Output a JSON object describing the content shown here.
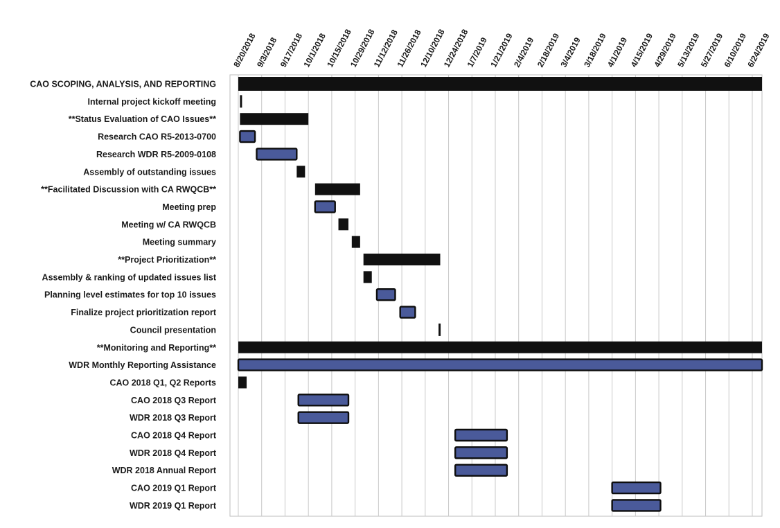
{
  "chart_data": {
    "type": "gantt",
    "title": "",
    "grid": true,
    "x_axis": {
      "position": "top",
      "range": [
        "8/20/2018",
        "6/24/2019"
      ],
      "ticks": [
        "8/20/2018",
        "9/3/2018",
        "9/17/2018",
        "10/1/2018",
        "10/15/2018",
        "10/29/2018",
        "11/12/2018",
        "11/26/2018",
        "12/10/2018",
        "12/24/2018",
        "1/7/2019",
        "1/21/2019",
        "2/4/2019",
        "2/18/2019",
        "3/4/2019",
        "3/18/2019",
        "4/1/2019",
        "4/15/2019",
        "4/29/2019",
        "5/13/2019",
        "5/27/2019",
        "6/10/2019",
        "6/24/2019"
      ]
    },
    "colors": {
      "summary": "#111111",
      "task": "#4a5a9a",
      "task_border": "#0d0d0d",
      "grid": "#c8c8c8"
    },
    "tasks": [
      {
        "label": "CAO SCOPING, ANALYSIS, AND REPORTING",
        "start": "8/20/2018",
        "end": "6/30/2019",
        "kind": "summary"
      },
      {
        "label": "Internal project kickoff meeting",
        "start": "8/21/2018",
        "end": "8/21/2018",
        "kind": "milestone"
      },
      {
        "label": "**Status Evaluation of CAO Issues**",
        "start": "8/21/2018",
        "end": "10/1/2018",
        "kind": "summary"
      },
      {
        "label": "Research CAO R5-2013-0700",
        "start": "8/21/2018",
        "end": "8/30/2018",
        "kind": "task"
      },
      {
        "label": "Research WDR R5-2009-0108",
        "start": "8/31/2018",
        "end": "9/24/2018",
        "kind": "task"
      },
      {
        "label": "Assembly of outstanding issues",
        "start": "9/24/2018",
        "end": "9/29/2018",
        "kind": "summary"
      },
      {
        "label": "**Facilitated Discussion with CA RWQCB**",
        "start": "10/5/2018",
        "end": "11/1/2018",
        "kind": "summary"
      },
      {
        "label": "Meeting prep",
        "start": "10/5/2018",
        "end": "10/17/2018",
        "kind": "task"
      },
      {
        "label": "Meeting w/ CA RWQCB",
        "start": "10/19/2018",
        "end": "10/25/2018",
        "kind": "summary"
      },
      {
        "label": "Meeting summary",
        "start": "10/27/2018",
        "end": "11/1/2018",
        "kind": "summary"
      },
      {
        "label": "**Project Prioritization**",
        "start": "11/3/2018",
        "end": "12/19/2018",
        "kind": "summary"
      },
      {
        "label": "Assembly & ranking of updated issues list",
        "start": "11/3/2018",
        "end": "11/8/2018",
        "kind": "summary"
      },
      {
        "label": "Planning level estimates for top 10 issues",
        "start": "11/11/2018",
        "end": "11/22/2018",
        "kind": "task"
      },
      {
        "label": "Finalize project prioritization report",
        "start": "11/25/2018",
        "end": "12/4/2018",
        "kind": "task"
      },
      {
        "label": "Council presentation",
        "start": "12/18/2018",
        "end": "12/18/2018",
        "kind": "milestone"
      },
      {
        "label": "**Monitoring and Reporting**",
        "start": "8/20/2018",
        "end": "6/30/2019",
        "kind": "summary"
      },
      {
        "label": "WDR Monthly Reporting Assistance",
        "start": "8/20/2018",
        "end": "6/30/2019",
        "kind": "task"
      },
      {
        "label": "CAO 2018 Q1, Q2 Reports",
        "start": "8/20/2018",
        "end": "8/25/2018",
        "kind": "summary"
      },
      {
        "label": "CAO 2018 Q3 Report",
        "start": "9/25/2018",
        "end": "10/25/2018",
        "kind": "task"
      },
      {
        "label": "WDR 2018 Q3 Report",
        "start": "9/25/2018",
        "end": "10/25/2018",
        "kind": "task"
      },
      {
        "label": "CAO 2018 Q4 Report",
        "start": "12/28/2018",
        "end": "1/28/2019",
        "kind": "task"
      },
      {
        "label": "WDR 2018 Q4 Report",
        "start": "12/28/2018",
        "end": "1/28/2019",
        "kind": "task"
      },
      {
        "label": "WDR 2018 Annual Report",
        "start": "12/28/2018",
        "end": "1/28/2019",
        "kind": "task"
      },
      {
        "label": "CAO 2019 Q1 Report",
        "start": "4/1/2019",
        "end": "4/30/2019",
        "kind": "task"
      },
      {
        "label": "WDR 2019 Q1 Report",
        "start": "4/1/2019",
        "end": "4/30/2019",
        "kind": "task"
      }
    ]
  }
}
